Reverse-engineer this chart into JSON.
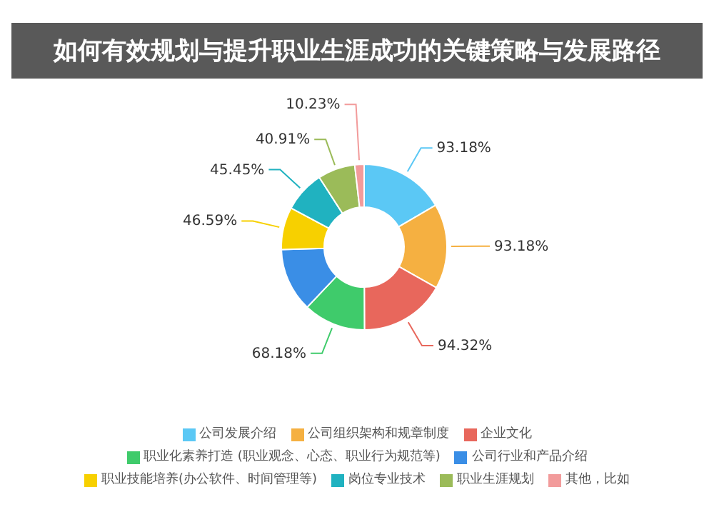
{
  "chart_data": {
    "type": "donut",
    "title": "如何有效规划与提升职业生涯成功的关键策略与发展路径",
    "categories": [
      "公司发展介绍",
      "公司组织架构和规章制度",
      "企业文化",
      "职业化素养打造 (职业观念、心态、职业行为规范等)",
      "公司行业和产品介绍",
      "职业技能培养(办公软件、时间管理等)",
      "岗位专业技术",
      "职业生涯规划",
      "其他，比如"
    ],
    "values": [
      93.18,
      93.18,
      94.32,
      68.18,
      70,
      46.59,
      45.45,
      40.91,
      10.23
    ],
    "value_labels": [
      "93.18%",
      "93.18%",
      "94.32%",
      "68.18%",
      null,
      "46.59%",
      "45.45%",
      "40.91%",
      "10.23%"
    ],
    "colors": [
      "#5bc8f5",
      "#f5b041",
      "#e8675c",
      "#3fcb6b",
      "#3a8ee6",
      "#f7d000",
      "#20b2c0",
      "#9bbb59",
      "#f29b9b"
    ],
    "legend": "bottom"
  }
}
